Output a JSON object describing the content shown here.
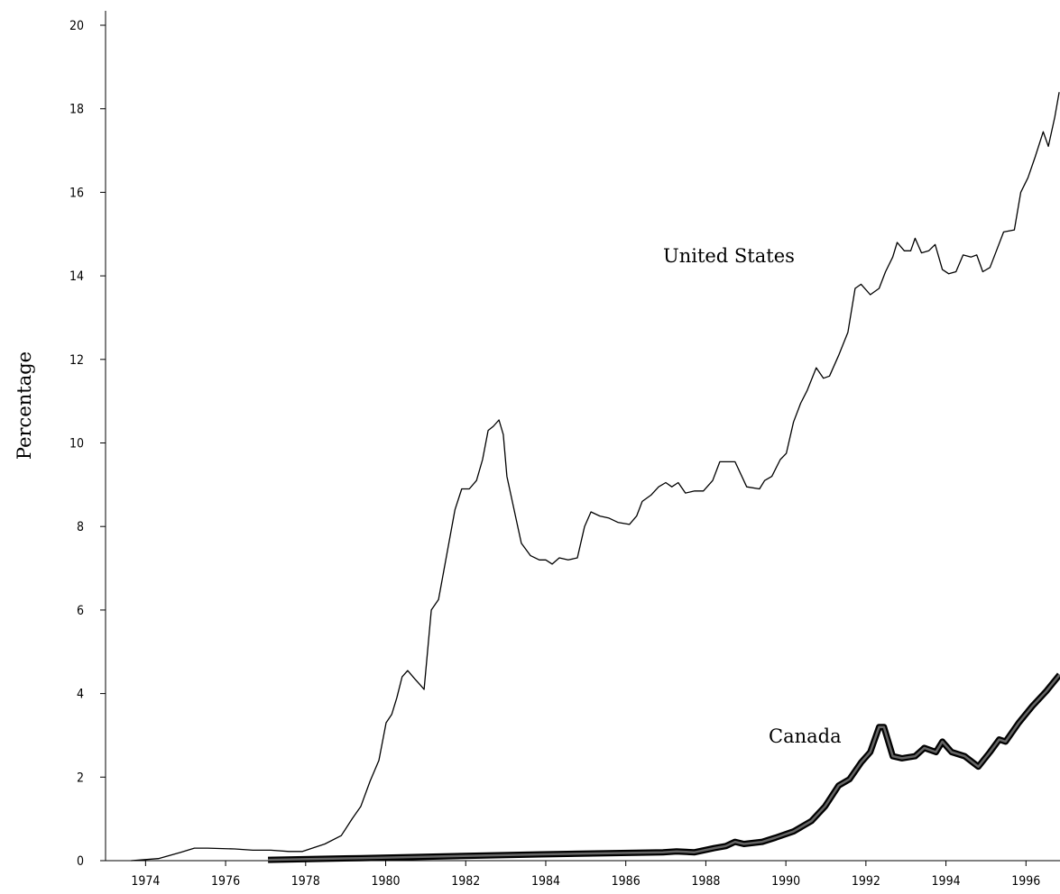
{
  "chart_data": {
    "type": "line",
    "ylabel": "Percentage",
    "xlim": [
      1973,
      1996.85
    ],
    "xticks": [
      1974,
      1976,
      1978,
      1980,
      1982,
      1984,
      1986,
      1988,
      1990,
      1992,
      1994,
      1996
    ],
    "ylim": [
      0,
      20
    ],
    "yticks": [
      0,
      2,
      4,
      6,
      8,
      10,
      12,
      14,
      16,
      18,
      20
    ],
    "series": [
      {
        "name": "United States",
        "color": "#000000",
        "x": [
          1973.64,
          1974.32,
          1974.88,
          1975.22,
          1975.55,
          1976.23,
          1976.68,
          1977.13,
          1977.58,
          1977.92,
          1978.48,
          1978.89,
          1979.16,
          1979.38,
          1979.61,
          1979.83,
          1980.01,
          1980.15,
          1980.28,
          1980.41,
          1980.55,
          1980.73,
          1980.87,
          1980.96,
          1981.14,
          1981.32,
          1981.52,
          1981.73,
          1981.9,
          1982.09,
          1982.27,
          1982.42,
          1982.56,
          1982.69,
          1982.83,
          1982.94,
          1983.03,
          1983.21,
          1983.39,
          1983.62,
          1983.84,
          1984.0,
          1984.16,
          1984.34,
          1984.56,
          1984.79,
          1984.97,
          1985.13,
          1985.35,
          1985.58,
          1985.8,
          1986.09,
          1986.27,
          1986.41,
          1986.63,
          1986.82,
          1987.0,
          1987.15,
          1987.31,
          1987.49,
          1987.72,
          1987.94,
          1988.17,
          1988.35,
          1988.73,
          1989.02,
          1989.34,
          1989.47,
          1989.65,
          1989.86,
          1990.01,
          1990.19,
          1990.37,
          1990.53,
          1990.76,
          1990.94,
          1991.09,
          1991.32,
          1991.55,
          1991.73,
          1991.88,
          1992.11,
          1992.33,
          1992.49,
          1992.67,
          1992.78,
          1992.96,
          1993.12,
          1993.23,
          1993.39,
          1993.57,
          1993.73,
          1993.91,
          1994.07,
          1994.25,
          1994.43,
          1994.63,
          1994.77,
          1994.92,
          1995.1,
          1995.26,
          1995.44,
          1995.71,
          1995.87,
          1996.05,
          1996.23,
          1996.43,
          1996.56,
          1996.72,
          1996.83
        ],
        "values": [
          0,
          0.05,
          0.2,
          0.3,
          0.3,
          0.28,
          0.25,
          0.25,
          0.22,
          0.22,
          0.4,
          0.6,
          1.0,
          1.3,
          1.9,
          2.4,
          3.3,
          3.5,
          3.9,
          4.4,
          4.55,
          4.35,
          4.2,
          4.1,
          6.0,
          6.25,
          7.3,
          8.4,
          8.9,
          8.9,
          9.1,
          9.6,
          10.3,
          10.4,
          10.55,
          10.2,
          9.2,
          8.4,
          7.6,
          7.3,
          7.2,
          7.2,
          7.1,
          7.25,
          7.2,
          7.25,
          8.0,
          8.35,
          8.25,
          8.2,
          8.1,
          8.05,
          8.25,
          8.6,
          8.75,
          8.95,
          9.05,
          8.95,
          9.05,
          8.8,
          8.85,
          8.85,
          9.1,
          9.55,
          9.55,
          8.95,
          8.9,
          9.1,
          9.2,
          9.6,
          9.75,
          10.5,
          10.95,
          11.25,
          11.8,
          11.55,
          11.6,
          12.1,
          12.65,
          13.7,
          13.8,
          13.55,
          13.7,
          14.1,
          14.45,
          14.8,
          14.6,
          14.6,
          14.9,
          14.55,
          14.6,
          14.75,
          14.15,
          14.05,
          14.1,
          14.5,
          14.45,
          14.5,
          14.1,
          14.2,
          14.6,
          15.05,
          15.1,
          16.0,
          16.35,
          16.85,
          17.45,
          17.1,
          17.8,
          18.4
        ]
      },
      {
        "name": "Canada",
        "color": "#000000",
        "x": [
          1977.06,
          1979.38,
          1983.89,
          1986.93,
          1987.27,
          1987.72,
          1988.21,
          1988.5,
          1988.73,
          1988.95,
          1989.41,
          1989.74,
          1990.19,
          1990.64,
          1990.98,
          1991.32,
          1991.59,
          1991.88,
          1992.11,
          1992.33,
          1992.45,
          1992.67,
          1992.9,
          1993.23,
          1993.46,
          1993.75,
          1993.91,
          1994.14,
          1994.47,
          1994.81,
          1995.1,
          1995.33,
          1995.49,
          1995.82,
          1996.16,
          1996.5,
          1996.84
        ],
        "values": [
          0.02,
          0.06,
          0.15,
          0.2,
          0.22,
          0.2,
          0.3,
          0.35,
          0.45,
          0.4,
          0.45,
          0.55,
          0.7,
          0.95,
          1.3,
          1.8,
          1.95,
          2.35,
          2.6,
          3.2,
          3.2,
          2.5,
          2.45,
          2.5,
          2.7,
          2.6,
          2.85,
          2.6,
          2.5,
          2.25,
          2.6,
          2.9,
          2.85,
          3.3,
          3.7,
          4.05,
          4.45
        ]
      }
    ]
  }
}
